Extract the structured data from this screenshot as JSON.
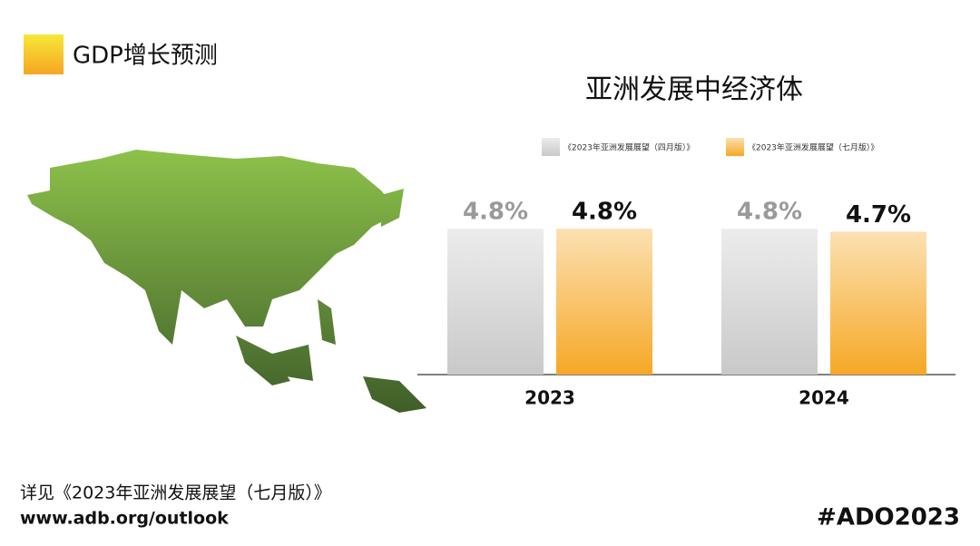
{
  "header": {
    "badge": "GDP增长预测"
  },
  "chart_data": {
    "type": "bar",
    "title": "亚洲发展中经济体",
    "categories": [
      "2023",
      "2024"
    ],
    "series": [
      {
        "name": "《2023年亚洲发展展望（四月版）》",
        "color": "#c9c9c9",
        "values": [
          4.8,
          4.8
        ],
        "value_labels": [
          "4.8%",
          "4.8%"
        ],
        "label_color": "#9a9a9a"
      },
      {
        "name": "《2023年亚洲发展展望（七月版）》",
        "color": "#f6a825",
        "values": [
          4.8,
          4.7
        ],
        "value_labels": [
          "4.8%",
          "4.7%"
        ],
        "label_color": "#111111"
      }
    ]
  },
  "footer": {
    "note": "详见《2023年亚洲发展展望（七月版）》",
    "url": "www.adb.org/outlook",
    "hashtag": "#ADO2023"
  }
}
